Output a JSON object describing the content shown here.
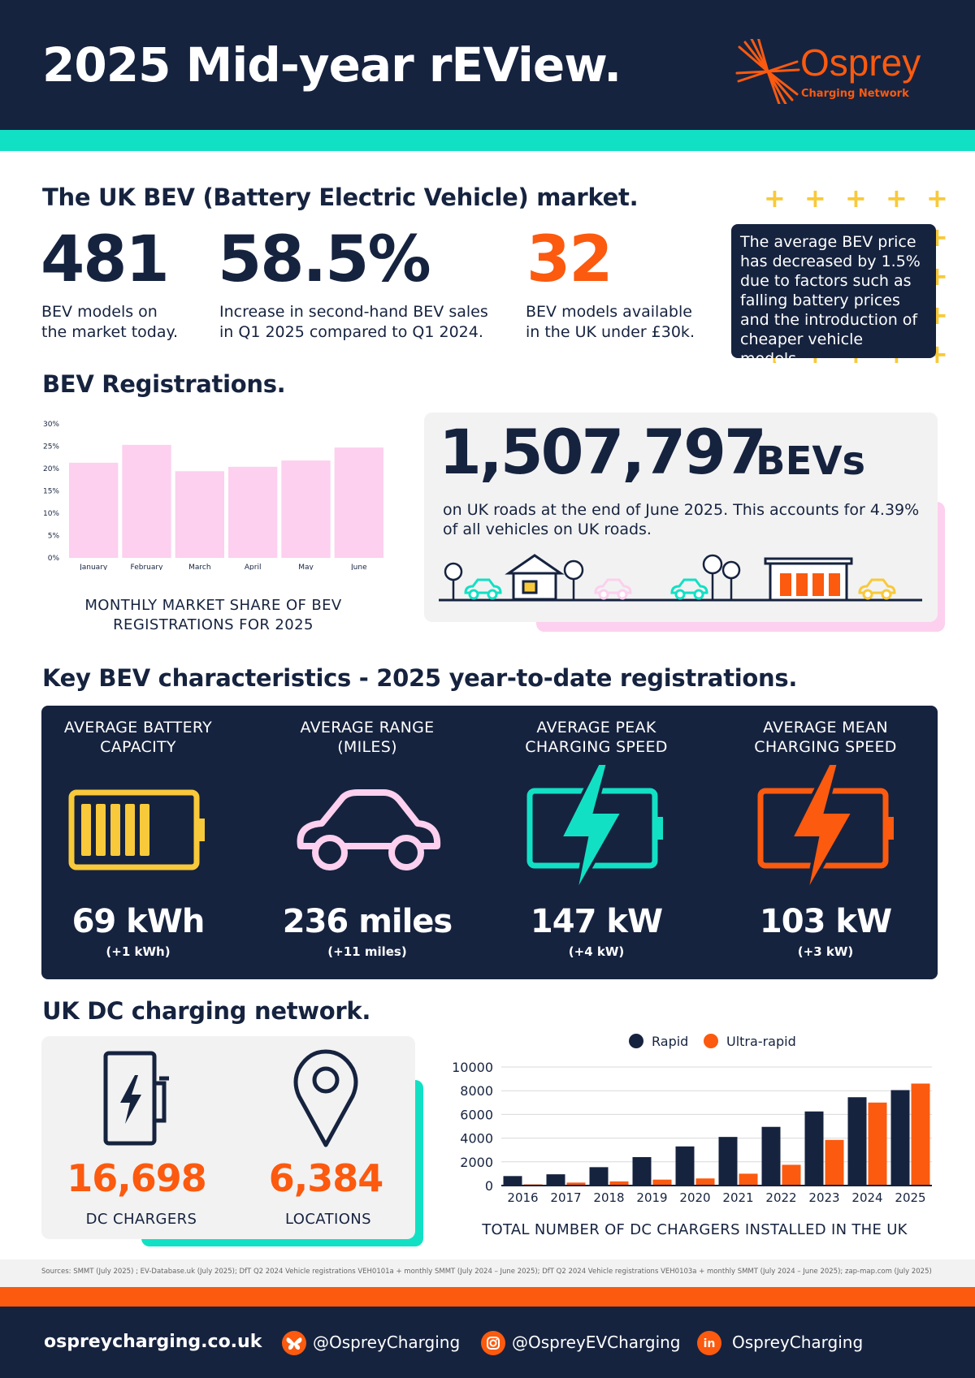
{
  "header": {
    "title": "2025 Mid-year rEView.",
    "logo_word": "Osprey",
    "logo_sub": "Charging Network"
  },
  "market": {
    "heading": "The UK BEV (Battery Electric Vehicle) market.",
    "stats": [
      {
        "value": "481",
        "label_1": "BEV models on",
        "label_2": "the market today."
      },
      {
        "value": "58.5%",
        "label_1": "Increase in second-hand BEV sales",
        "label_2": "in Q1 2025 compared to Q1 2024."
      },
      {
        "value": "32",
        "label_1": "BEV models available",
        "label_2": "in the UK under £30k."
      }
    ],
    "note": "The average BEV price has decreased by 1.5% due to factors such as falling battery prices and the introduction of cheaper vehicle models."
  },
  "registrations": {
    "heading": "BEV Registrations.",
    "caption_1": "MONTHLY MARKET SHARE OF BEV",
    "caption_2": "REGISTRATIONS FOR 2025",
    "total_value": "1,507,797",
    "total_unit": "BEVs",
    "total_text": "on UK roads at the end of June 2025. This accounts for 4.39% of all vehicles on UK roads."
  },
  "characteristics": {
    "heading": "Key BEV characteristics - 2025 year-to-date registrations.",
    "items": [
      {
        "label_1": "AVERAGE BATTERY",
        "label_2": "CAPACITY",
        "value": "69 kWh",
        "delta": "(+1 kWh)",
        "icon": "battery-icon",
        "color": "#f8c93a"
      },
      {
        "label_1": "AVERAGE RANGE",
        "label_2": "(MILES)",
        "value": "236 miles",
        "delta": "(+11 miles)",
        "icon": "car-icon",
        "color": "#fcd0ee"
      },
      {
        "label_1": "AVERAGE PEAK",
        "label_2": "CHARGING SPEED",
        "value": "147 kW",
        "delta": "(+4 kW)",
        "icon": "battery-bolt-icon",
        "color": "#12e0c4"
      },
      {
        "label_1": "AVERAGE MEAN",
        "label_2": "CHARGING SPEED",
        "value": "103 kW",
        "delta": "(+3 kW)",
        "icon": "battery-bolt-icon",
        "color": "#fb5a0f"
      }
    ]
  },
  "dc_network": {
    "heading": "UK DC charging network.",
    "chargers_value": "16,698",
    "chargers_label": "DC CHARGERS",
    "locations_value": "6,384",
    "locations_label": "LOCATIONS",
    "caption": "TOTAL NUMBER OF DC CHARGERS INSTALLED IN THE UK"
  },
  "sources": "Sources: SMMT (July 2025) ; EV-Database.uk (July 2025); DfT Q2 2024 Vehicle registrations VEH0101a + monthly SMMT (July 2024 – June 2025); DfT Q2 2024 Vehicle registrations VEH0103a + monthly SMMT (July 2024 – June 2025); zap-map.com (July 2025)",
  "footer": {
    "website": "ospreycharging.co.uk",
    "social": [
      {
        "icon": "butterfly-icon",
        "handle": "@OspreyCharging"
      },
      {
        "icon": "instagram-icon",
        "handle": "@OspreyEVCharging"
      },
      {
        "icon": "linkedin-icon",
        "handle": "OspreyCharging"
      }
    ]
  },
  "colors": {
    "navy": "#16233f",
    "orange": "#fb5a0f",
    "teal": "#12e0c4",
    "pink": "#fcd0ee",
    "yellow": "#f8c93a"
  },
  "chart_data": [
    {
      "type": "bar",
      "categories": [
        "January",
        "February",
        "March",
        "April",
        "May",
        "June"
      ],
      "values": [
        21.3,
        25.3,
        19.4,
        20.4,
        21.8,
        24.7
      ],
      "ylim": [
        0,
        30
      ],
      "yticks": [
        "0%",
        "5%",
        "10%",
        "15%",
        "20%",
        "25%",
        "30%"
      ],
      "color": "#fcd0ee",
      "grid": false
    },
    {
      "type": "bar",
      "categories": [
        "2016",
        "2017",
        "2018",
        "2019",
        "2020",
        "2021",
        "2022",
        "2023",
        "2024",
        "2025"
      ],
      "series": [
        {
          "name": "Rapid",
          "color": "#16233f",
          "values": [
            800,
            950,
            1550,
            2400,
            3300,
            4100,
            4950,
            6250,
            7450,
            8050
          ]
        },
        {
          "name": "Ultra-rapid",
          "color": "#fb5a0f",
          "values": [
            100,
            250,
            350,
            500,
            600,
            1000,
            1750,
            3850,
            7000,
            8600
          ]
        }
      ],
      "ylim": [
        0,
        10000
      ],
      "yticks": [
        "0",
        "2000",
        "4000",
        "6000",
        "8000",
        "10000"
      ],
      "legend": "top",
      "grid": true
    }
  ]
}
